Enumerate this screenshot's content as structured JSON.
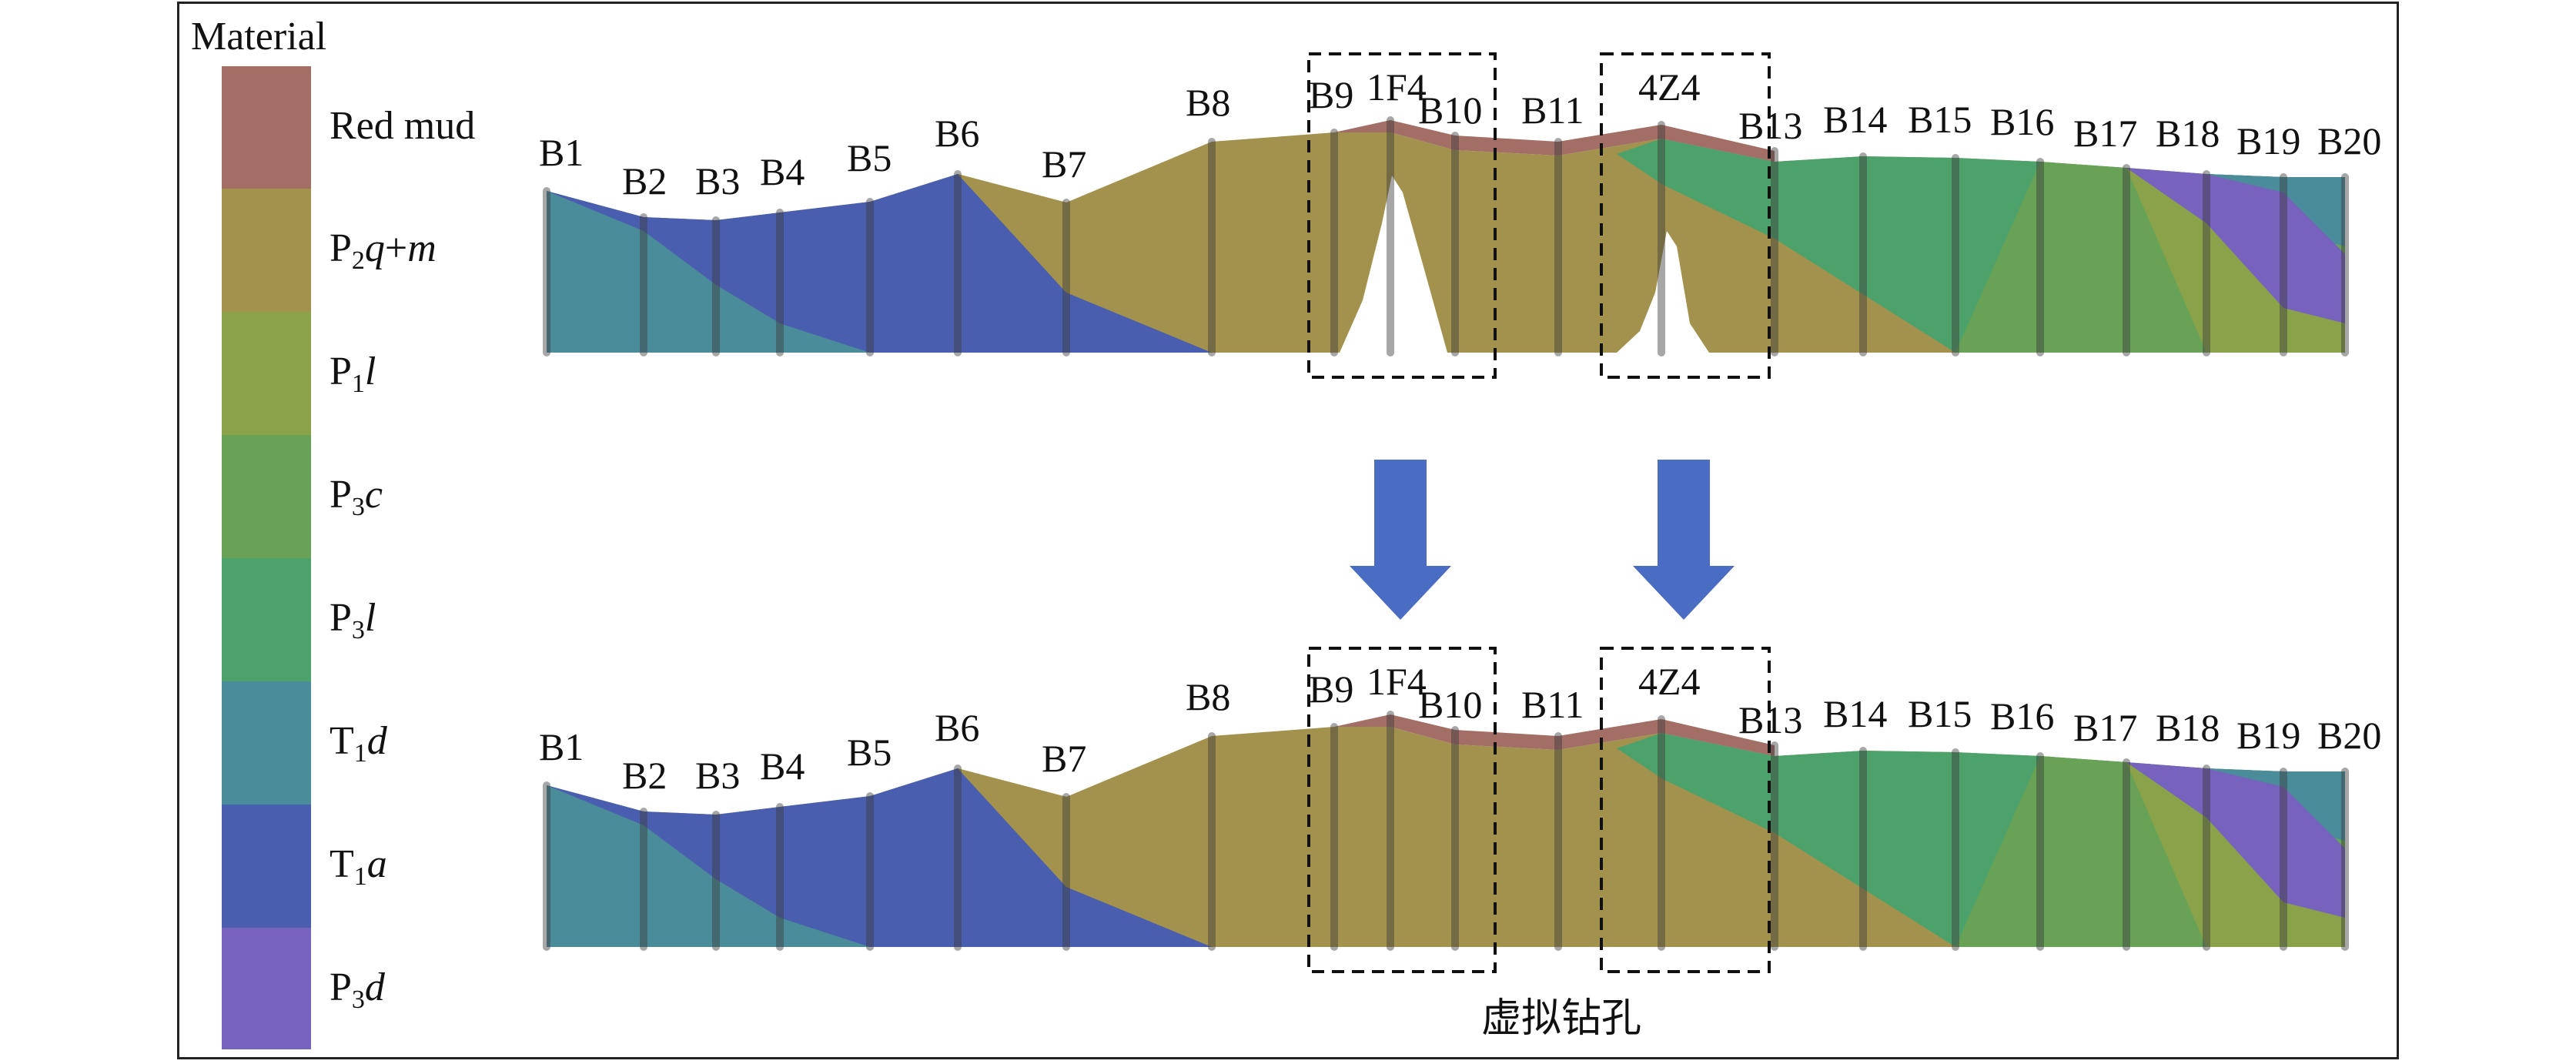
{
  "legend": {
    "title": "Material",
    "items": [
      {
        "label_html": "Red mud",
        "color": "#a26e66"
      },
      {
        "label_html": "P<sub>2</sub><i>q</i>+<i>m</i>",
        "color": "#a2924e"
      },
      {
        "label_html": "P<sub>1</sub><i>l</i>",
        "color": "#8aa249"
      },
      {
        "label_html": "P<sub>3</sub><i>c</i>",
        "color": "#67a256"
      },
      {
        "label_html": "P<sub>3</sub><i>l</i>",
        "color": "#4da26b"
      },
      {
        "label_html": "T<sub>1</sub><i>d</i>",
        "color": "#4a8c9a"
      },
      {
        "label_html": "T<sub>1</sub><i>a</i>",
        "color": "#4a5eaf"
      },
      {
        "label_html": "P<sub>3</sub><i>d</i>",
        "color": "#7762bd"
      }
    ]
  },
  "boreholes": [
    "B1",
    "B2",
    "B3",
    "B4",
    "B5",
    "B6",
    "B7",
    "B8",
    "B9",
    "1F4",
    "B10",
    "B11",
    "4Z4",
    "B13",
    "B14",
    "B15",
    "B16",
    "B17",
    "B18",
    "B19",
    "B20"
  ],
  "dashed_boxes": [
    "1F4",
    "4Z4"
  ],
  "arrow_color": "#4a6cc2",
  "caption": "虚拟钻孔"
}
